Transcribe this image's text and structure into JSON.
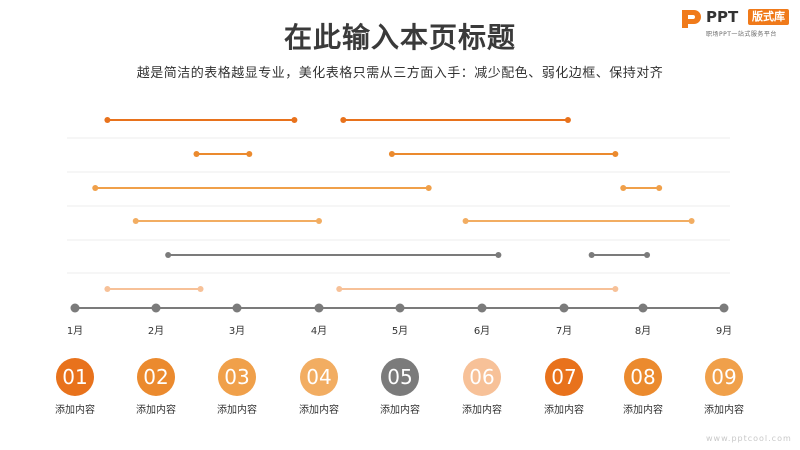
{
  "header": {
    "title": "在此输入本页标题",
    "subtitle": "越是简洁的表格越显专业，美化表格只需从三方面入手：减少配色、弱化边框、保持对齐"
  },
  "logo": {
    "ppt": "PPT",
    "badge": "版式库",
    "tagline": "职场PPT一站式服务平台"
  },
  "timeline": {
    "months": [
      "1月",
      "2月",
      "3月",
      "4月",
      "5月",
      "6月",
      "7月",
      "8月",
      "9月"
    ],
    "colors": {
      "c1": "#e8721c",
      "c2": "#eb8a2e",
      "c3": "#f0a04a",
      "c4": "#f2ad62",
      "gray": "#7b7b7b",
      "light": "#f7c198",
      "axis": "#7b7b7b",
      "grid": "#eeeeee"
    },
    "rows": [
      {
        "color": "c1",
        "segments": [
          [
            1.4,
            3.7
          ],
          [
            4.3,
            7.05
          ]
        ]
      },
      {
        "color": "c2",
        "segments": [
          [
            2.5,
            3.15
          ],
          [
            4.9,
            7.65
          ]
        ]
      },
      {
        "color": "c3",
        "segments": [
          [
            1.25,
            5.35
          ],
          [
            7.75,
            8.2
          ]
        ]
      },
      {
        "color": "c4",
        "segments": [
          [
            1.75,
            4.0
          ],
          [
            5.8,
            8.6
          ]
        ]
      },
      {
        "color": "gray",
        "segments": [
          [
            2.15,
            6.2
          ],
          [
            7.35,
            8.05
          ]
        ]
      },
      {
        "color": "light",
        "segments": [
          [
            1.4,
            2.55
          ],
          [
            4.25,
            7.65
          ]
        ]
      }
    ]
  },
  "steps": [
    {
      "num": "01",
      "label": "添加内容",
      "color": "#e8721c"
    },
    {
      "num": "02",
      "label": "添加内容",
      "color": "#eb8a2e"
    },
    {
      "num": "03",
      "label": "添加内容",
      "color": "#f0a04a"
    },
    {
      "num": "04",
      "label": "添加内容",
      "color": "#f2ad62"
    },
    {
      "num": "05",
      "label": "添加内容",
      "color": "#7b7b7b"
    },
    {
      "num": "06",
      "label": "添加内容",
      "color": "#f7c198"
    },
    {
      "num": "07",
      "label": "添加内容",
      "color": "#e8721c"
    },
    {
      "num": "08",
      "label": "添加内容",
      "color": "#eb8a2e"
    },
    {
      "num": "09",
      "label": "添加内容",
      "color": "#f0a04a"
    }
  ],
  "watermark": "www.pptcool.com"
}
